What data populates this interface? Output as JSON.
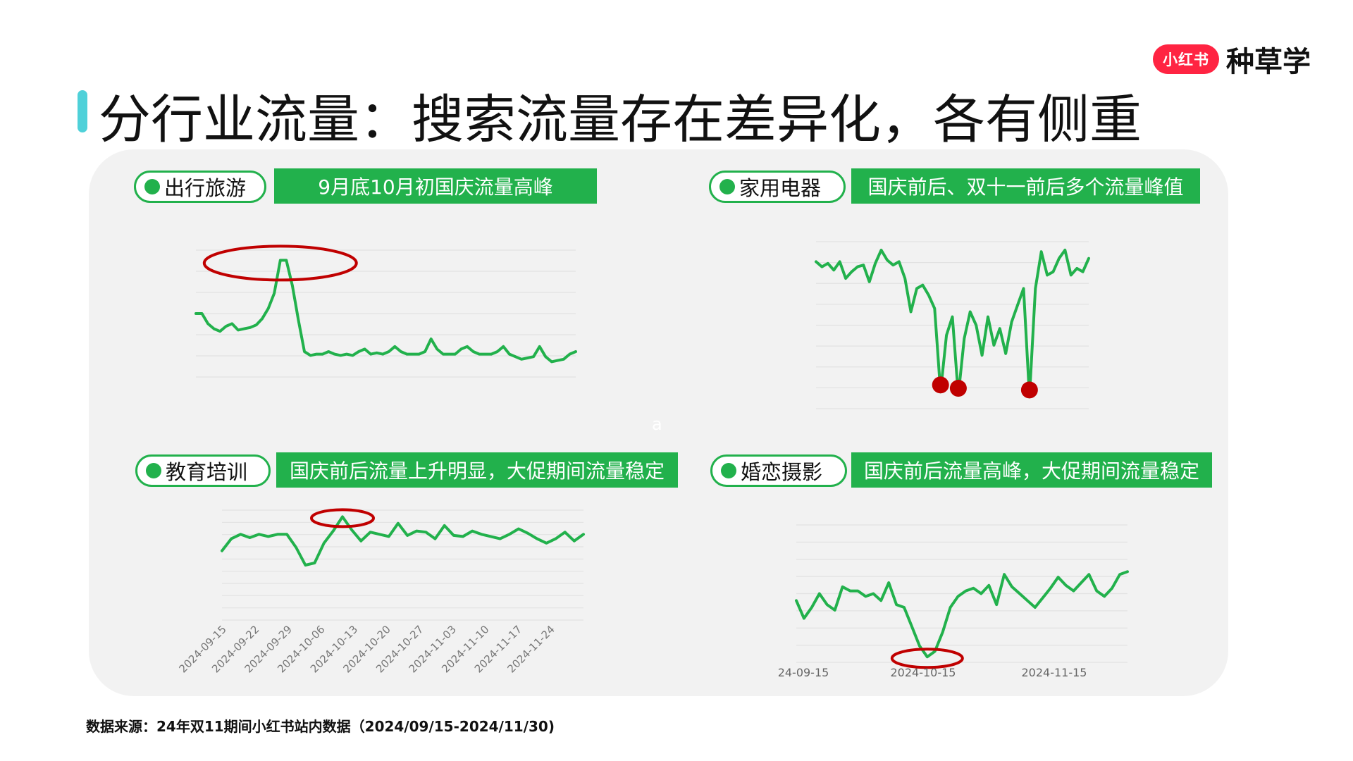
{
  "brand": {
    "badge": "小红书",
    "text": "种草学"
  },
  "page_title": "分行业流量：搜索流量存在差异化，各有侧重",
  "colors": {
    "line": "#22b14c",
    "highlight": "#c00000",
    "title_bar": "#4fd1d9",
    "grid": "#e2e2e2"
  },
  "panels": [
    {
      "tag": "出行旅游",
      "banner": "9月底10月初国庆流量高峰"
    },
    {
      "tag": "家用电器",
      "banner": "国庆前后、双十一前后多个流量峰值"
    },
    {
      "tag": "教育培训",
      "banner": "国庆前后流量上升明显，大促期间流量稳定"
    },
    {
      "tag": "婚恋摄影",
      "banner": "国庆前后流量高峰，大促期间流量稳定"
    }
  ],
  "watermark": "a",
  "source": "数据来源：24年双11期间小红书站内数据（2024/09/15-2024/11/30)",
  "chart_data": [
    {
      "type": "line",
      "name": "出行旅游",
      "x_start": "2024-09-15",
      "x_end": "2024-11-30",
      "values": [
        0.5,
        0.5,
        0.58,
        0.62,
        0.64,
        0.6,
        0.58,
        0.63,
        0.62,
        0.61,
        0.59,
        0.54,
        0.46,
        0.34,
        0.08,
        0.08,
        0.28,
        0.55,
        0.8,
        0.83,
        0.82,
        0.82,
        0.8,
        0.82,
        0.83,
        0.82,
        0.83,
        0.8,
        0.78,
        0.82,
        0.81,
        0.82,
        0.8,
        0.76,
        0.8,
        0.82,
        0.82,
        0.82,
        0.8,
        0.7,
        0.78,
        0.82,
        0.82,
        0.82,
        0.78,
        0.76,
        0.8,
        0.82,
        0.82,
        0.82,
        0.8,
        0.76,
        0.82,
        0.84,
        0.86,
        0.85,
        0.84,
        0.76,
        0.84,
        0.88,
        0.87,
        0.86,
        0.82,
        0.8
      ],
      "highlight_peaks": [
        14
      ],
      "grid": true,
      "axis_labels_shown": false
    },
    {
      "type": "line",
      "name": "家用电器",
      "x_start": "2024-09-15",
      "x_end": "2024-11-30",
      "values": [
        0.12,
        0.15,
        0.13,
        0.17,
        0.12,
        0.22,
        0.18,
        0.15,
        0.14,
        0.24,
        0.13,
        0.05,
        0.11,
        0.14,
        0.12,
        0.22,
        0.42,
        0.28,
        0.26,
        0.32,
        0.4,
        0.9,
        0.56,
        0.45,
        0.92,
        0.58,
        0.42,
        0.5,
        0.68,
        0.45,
        0.62,
        0.52,
        0.67,
        0.48,
        0.38,
        0.28,
        0.93,
        0.28,
        0.06,
        0.2,
        0.18,
        0.1,
        0.05,
        0.2,
        0.16,
        0.18,
        0.1
      ],
      "highlight_peaks": [
        21,
        24,
        36
      ],
      "grid": true,
      "axis_labels_shown": false
    },
    {
      "type": "line",
      "name": "教育培训",
      "x_start": "2024-09-15",
      "x_end": "2024-11-30",
      "x_tick_labels": [
        "2024-09-15",
        "2024-09-22",
        "2024-09-29",
        "2024-10-06",
        "2024-10-13",
        "2024-10-20",
        "2024-10-27",
        "2024-11-03",
        "2024-11-10",
        "2024-11-17",
        "2024-11-24"
      ],
      "values": [
        0.37,
        0.26,
        0.22,
        0.25,
        0.22,
        0.24,
        0.22,
        0.22,
        0.34,
        0.5,
        0.48,
        0.3,
        0.19,
        0.06,
        0.18,
        0.28,
        0.2,
        0.22,
        0.24,
        0.12,
        0.23,
        0.19,
        0.2,
        0.26,
        0.14,
        0.23,
        0.24,
        0.19,
        0.22,
        0.24,
        0.26,
        0.22,
        0.17,
        0.21,
        0.26,
        0.3,
        0.26,
        0.2,
        0.28,
        0.22
      ],
      "highlight_peaks": [
        13
      ],
      "grid": true
    },
    {
      "type": "line",
      "name": "婚恋摄影",
      "x_start": "2024-09-15",
      "x_end": "2024-11-30",
      "x_tick_labels": [
        "24-09-15",
        "2024-10-15",
        "2024-11-15"
      ],
      "values": [
        0.55,
        0.68,
        0.6,
        0.5,
        0.58,
        0.62,
        0.45,
        0.48,
        0.48,
        0.52,
        0.5,
        0.55,
        0.42,
        0.58,
        0.6,
        0.74,
        0.88,
        0.96,
        0.92,
        0.78,
        0.6,
        0.52,
        0.48,
        0.46,
        0.5,
        0.44,
        0.58,
        0.36,
        0.45,
        0.5,
        0.55,
        0.6,
        0.53,
        0.46,
        0.38,
        0.44,
        0.48,
        0.42,
        0.36,
        0.48,
        0.52,
        0.46,
        0.36,
        0.34
      ],
      "highlight_peaks": [
        17
      ],
      "grid": true
    }
  ]
}
